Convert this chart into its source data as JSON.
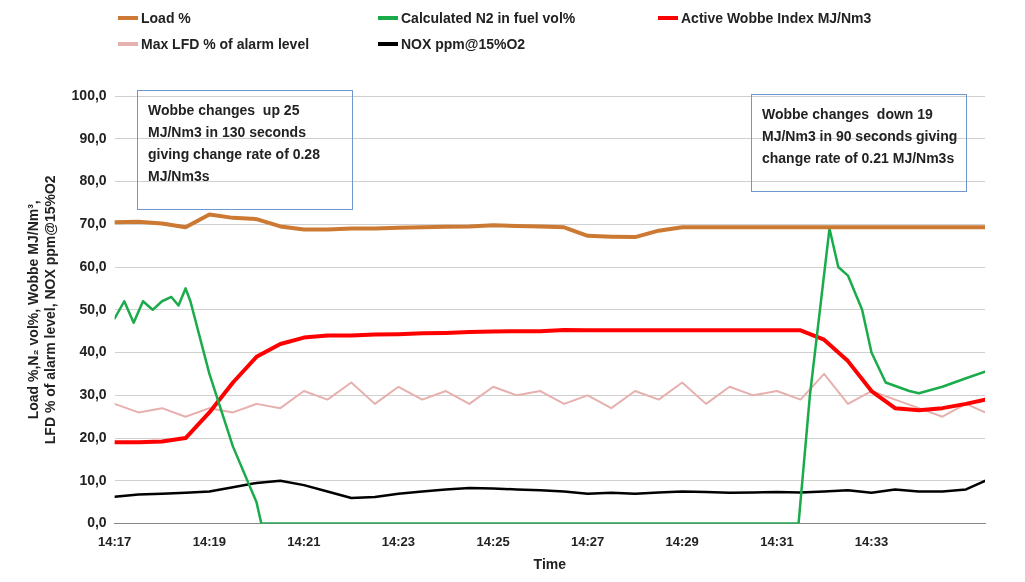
{
  "chart_data": {
    "type": "line",
    "xlabel": "Time",
    "ylabel": "Load %,N₂ vol%, Wobbe MJ/Nm³, LFD % of alarm level, NOX ppm@15%O2",
    "annotations": [
      "Wobbe changes  up 25 MJ/Nm3 in 130 seconds giving change rate of 0.28 MJ/Nm3s",
      "Wobbe changes  down 19 MJ/Nm3 in 90 seconds giving change rate of 0.21 MJ/Nm3s"
    ],
    "x": [
      14.2833,
      14.2917,
      14.3,
      14.3083,
      14.3167,
      14.325,
      14.3333,
      14.3417,
      14.35,
      14.3583,
      14.3667,
      14.375,
      14.3833,
      14.3917,
      14.4,
      14.4083,
      14.4167,
      14.425,
      14.4333,
      14.4417,
      14.45,
      14.4583,
      14.4667,
      14.475,
      14.4833,
      14.4917,
      14.5,
      14.5083,
      14.5167,
      14.525,
      14.5333,
      14.5417,
      14.55,
      14.5583,
      14.5667,
      14.575,
      14.5833,
      14.59
    ],
    "xlim": [
      14.2833,
      14.59
    ],
    "xticks": [
      {
        "value": 14.2833,
        "label": "14:17"
      },
      {
        "value": 14.3167,
        "label": "14:19"
      },
      {
        "value": 14.35,
        "label": "14:21"
      },
      {
        "value": 14.3833,
        "label": "14:23"
      },
      {
        "value": 14.4167,
        "label": "14:25"
      },
      {
        "value": 14.45,
        "label": "14:27"
      },
      {
        "value": 14.4833,
        "label": "14:29"
      },
      {
        "value": 14.5167,
        "label": "14:31"
      },
      {
        "value": 14.55,
        "label": "14:33"
      }
    ],
    "ylim": [
      0,
      100
    ],
    "yticks": [
      {
        "value": 0,
        "label": "0,0"
      },
      {
        "value": 10,
        "label": "10,0"
      },
      {
        "value": 20,
        "label": "20,0"
      },
      {
        "value": 30,
        "label": "30,0"
      },
      {
        "value": 40,
        "label": "40,0"
      },
      {
        "value": 50,
        "label": "50,0"
      },
      {
        "value": 60,
        "label": "60,0"
      },
      {
        "value": 70,
        "label": "70,0"
      },
      {
        "value": 80,
        "label": "80,0"
      },
      {
        "value": 90,
        "label": "90,0"
      },
      {
        "value": 100,
        "label": "100,0"
      }
    ],
    "grid": "y",
    "legend": "top",
    "marker": "none",
    "line_style": "solid",
    "series": [
      {
        "name": "Load %",
        "color": "#cc7a33",
        "values": [
          70.5,
          70.6,
          70.2,
          69.3,
          72.3,
          71.5,
          71.2,
          69.5,
          68.8,
          68.8,
          69,
          69,
          69.2,
          69.3,
          69.4,
          69.5,
          69.8,
          69.6,
          69.5,
          69.3,
          67.3,
          67.1,
          67,
          68.5,
          69.3,
          69.3,
          69.3,
          69.3,
          69.3,
          69.3,
          69.3,
          69.3,
          69.3,
          69.3,
          69.3,
          69.3,
          69.3,
          69.3
        ]
      },
      {
        "name": "Calculated N2 in fuel vol%",
        "color": "#1aab4a",
        "x": [
          14.2833,
          14.2867,
          14.29,
          14.2933,
          14.2967,
          14.3,
          14.3033,
          14.3058,
          14.3083,
          14.31,
          14.3167,
          14.325,
          14.3333,
          14.335,
          14.5243,
          14.5283,
          14.5352,
          14.5383,
          14.5417,
          14.5467,
          14.55,
          14.555,
          14.5633,
          14.5667,
          14.575,
          14.5833,
          14.59
        ],
        "values": [
          48,
          52,
          47,
          52,
          50,
          52,
          53,
          51,
          55,
          52,
          35,
          18,
          5,
          0,
          0,
          30,
          69,
          60,
          58,
          50,
          40,
          33,
          31,
          30.5,
          32,
          34,
          35.5
        ]
      },
      {
        "name": "Active Wobbe Index MJ/Nm3",
        "color": "#ff0000",
        "values": [
          19,
          19,
          19.2,
          20,
          26,
          33,
          39,
          42,
          43.5,
          44,
          44,
          44.2,
          44.3,
          44.5,
          44.6,
          44.8,
          44.9,
          45,
          45,
          45.3,
          45.2,
          45.2,
          45.2,
          45.2,
          45.2,
          45.2,
          45.2,
          45.2,
          45.2,
          45.2,
          43,
          38,
          31,
          27,
          26.5,
          27,
          28,
          29
        ]
      },
      {
        "name": "Max LFD % of alarm level",
        "color": "#e6b0ae",
        "values": [
          28,
          26,
          27,
          25,
          27,
          26,
          28,
          27,
          31,
          29,
          33,
          28,
          32,
          29,
          31,
          28,
          32,
          30,
          31,
          28,
          30,
          27,
          31,
          29,
          33,
          28,
          32,
          30,
          31,
          29,
          35,
          28,
          31,
          29,
          27,
          25,
          28,
          26
        ]
      },
      {
        "name": "NOX ppm@15%O2",
        "color": "#000000",
        "values": [
          6.3,
          6.8,
          7,
          7.2,
          7.5,
          8.5,
          9.5,
          10,
          9,
          7.5,
          6,
          6.2,
          7,
          7.5,
          8,
          8.3,
          8.2,
          8,
          7.8,
          7.5,
          7,
          7.2,
          7,
          7.3,
          7.5,
          7.4,
          7.2,
          7.3,
          7.4,
          7.3,
          7.5,
          7.8,
          7.2,
          8,
          7.5,
          7.5,
          8,
          10
        ]
      }
    ]
  }
}
